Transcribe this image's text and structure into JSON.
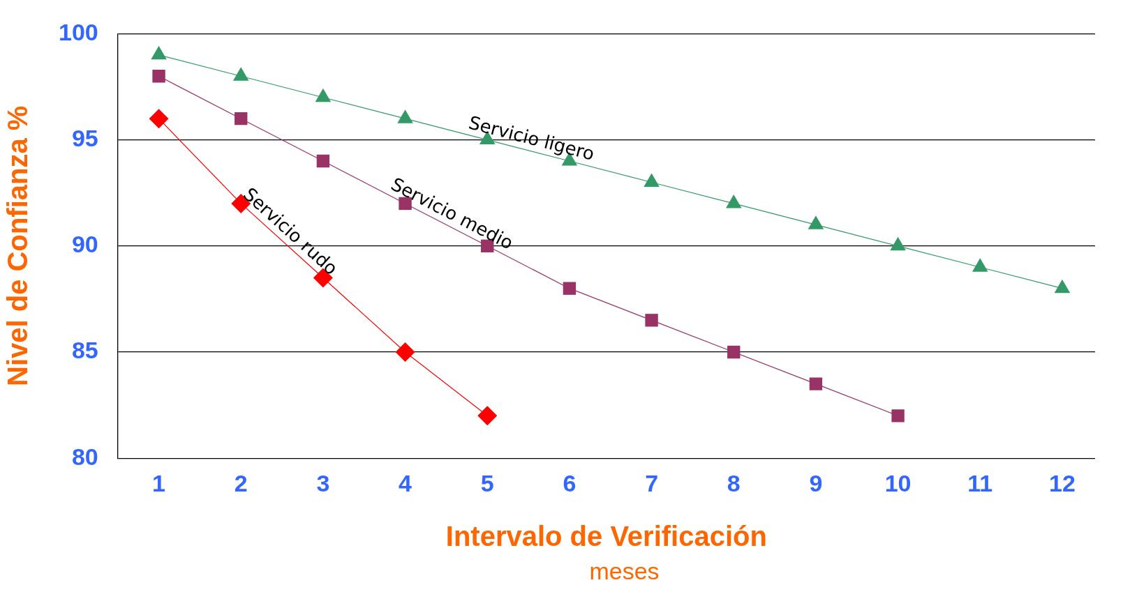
{
  "chart_data": {
    "type": "line",
    "xlabel": "Intervalo de Verificación",
    "ylabel": "Nivel de Confianza %",
    "annotations": [
      "meses"
    ],
    "series": [
      {
        "name": "Servicio ligero",
        "color": "#339966",
        "marker": "triangle",
        "x": [
          1,
          2,
          3,
          4,
          5,
          6,
          7,
          8,
          9,
          10,
          11,
          12
        ],
        "values": [
          99,
          98,
          97,
          96,
          95,
          94,
          93,
          92,
          91,
          90,
          89,
          88
        ]
      },
      {
        "name": "Servicio medio",
        "color": "#993366",
        "marker": "square",
        "x": [
          1,
          2,
          3,
          4,
          5,
          6,
          7,
          8,
          9,
          10
        ],
        "values": [
          98,
          96,
          94,
          92,
          90,
          88,
          86.5,
          85,
          83.5,
          82
        ]
      },
      {
        "name": "Servicio rudo",
        "color": "#ff0000",
        "marker": "diamond",
        "x": [
          1,
          2,
          3,
          4,
          5
        ],
        "values": [
          96,
          92,
          88.5,
          85,
          82
        ]
      }
    ],
    "xlim": [
      0.5,
      12.4
    ],
    "xticks": [
      1,
      2,
      3,
      4,
      5,
      6,
      7,
      8,
      9,
      10,
      11,
      12
    ],
    "ylim": [
      80,
      100
    ],
    "yticks": [
      80,
      85,
      90,
      95,
      100
    ],
    "grid": "y",
    "legend": false
  }
}
